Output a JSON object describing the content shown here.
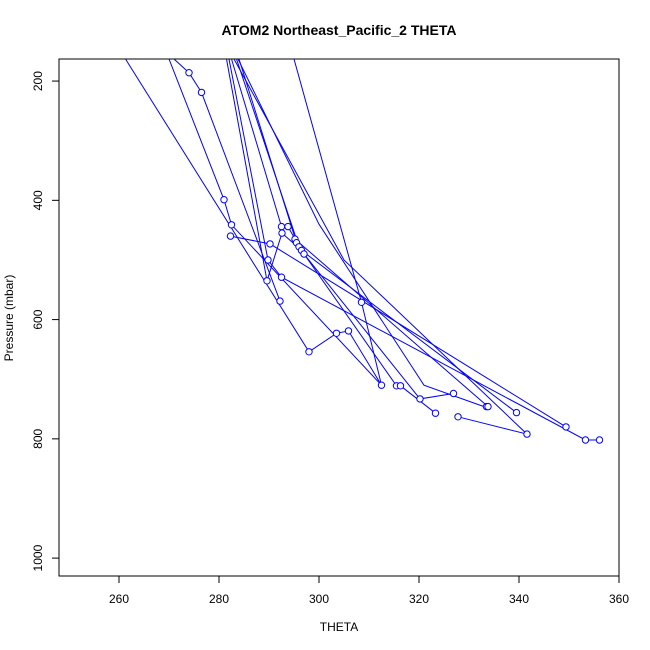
{
  "chart_data": {
    "type": "line",
    "title": "ATOM2 Northeast_Pacific_2 THETA",
    "xlabel": "THETA",
    "ylabel": "Pressure (mbar)",
    "xlim": [
      248,
      360
    ],
    "ylim_reversed": [
      1030,
      163
    ],
    "x_ticks": [
      "260",
      "280",
      "300",
      "320",
      "340",
      "360"
    ],
    "y_ticks": [
      "200",
      "400",
      "600",
      "800",
      "1000"
    ],
    "x_tick_values": [
      260,
      280,
      300,
      320,
      340,
      360
    ],
    "y_tick_values": [
      200,
      400,
      600,
      800,
      1000
    ],
    "grid": false,
    "series_color": "#0000ff",
    "marker": "open-circle",
    "points": [
      {
        "x": 274,
        "y": 186
      },
      {
        "x": 276.5,
        "y": 219
      },
      {
        "x": 281,
        "y": 399
      },
      {
        "x": 282.5,
        "y": 441
      },
      {
        "x": 282.3,
        "y": 460
      },
      {
        "x": 290.2,
        "y": 473
      },
      {
        "x": 289.8,
        "y": 500
      },
      {
        "x": 289.6,
        "y": 535
      },
      {
        "x": 292.5,
        "y": 529
      },
      {
        "x": 292.2,
        "y": 569
      },
      {
        "x": 292.5,
        "y": 444
      },
      {
        "x": 293.8,
        "y": 444
      },
      {
        "x": 292.6,
        "y": 455
      },
      {
        "x": 295.2,
        "y": 465
      },
      {
        "x": 295.5,
        "y": 471
      },
      {
        "x": 296.0,
        "y": 478
      },
      {
        "x": 296.5,
        "y": 484
      },
      {
        "x": 297.0,
        "y": 490
      },
      {
        "x": 308.5,
        "y": 571
      },
      {
        "x": 305.9,
        "y": 619
      },
      {
        "x": 303.5,
        "y": 623
      },
      {
        "x": 298.0,
        "y": 654
      },
      {
        "x": 312.5,
        "y": 710
      },
      {
        "x": 315.5,
        "y": 711
      },
      {
        "x": 316.3,
        "y": 711
      },
      {
        "x": 320.2,
        "y": 733
      },
      {
        "x": 326.9,
        "y": 724
      },
      {
        "x": 333.5,
        "y": 746
      },
      {
        "x": 333.8,
        "y": 746
      },
      {
        "x": 339.5,
        "y": 756
      },
      {
        "x": 323.3,
        "y": 757
      },
      {
        "x": 327.8,
        "y": 763
      },
      {
        "x": 349.4,
        "y": 780
      },
      {
        "x": 341.6,
        "y": 792
      },
      {
        "x": 353.3,
        "y": 802
      },
      {
        "x": 356.1,
        "y": 802
      }
    ],
    "lines": [
      [
        [
          261.3,
          163
        ],
        [
          298.0,
          654
        ],
        [
          303.5,
          623
        ],
        [
          305.9,
          619
        ],
        [
          312.5,
          710
        ],
        [
          308.5,
          571
        ],
        [
          295.0,
          163
        ]
      ],
      [
        [
          270.0,
          163
        ],
        [
          281,
          399
        ],
        [
          282.5,
          441
        ],
        [
          312.5,
          710
        ]
      ],
      [
        [
          271.0,
          163
        ],
        [
          274,
          186
        ],
        [
          276.5,
          219
        ],
        [
          292.2,
          569
        ]
      ],
      [
        [
          281.5,
          163
        ],
        [
          289.6,
          535
        ],
        [
          292.6,
          455
        ],
        [
          296.5,
          484
        ],
        [
          339.5,
          756
        ]
      ],
      [
        [
          282.3,
          460
        ],
        [
          290.2,
          473
        ],
        [
          349.4,
          780
        ]
      ],
      [
        [
          282.0,
          163
        ],
        [
          289.8,
          500
        ],
        [
          292.5,
          529
        ],
        [
          353.3,
          802
        ],
        [
          356.1,
          802
        ]
      ],
      [
        [
          282.5,
          163
        ],
        [
          292.5,
          444
        ],
        [
          293.8,
          444
        ],
        [
          295.2,
          465
        ],
        [
          333.8,
          746
        ],
        [
          333.5,
          746
        ]
      ],
      [
        [
          284.0,
          163
        ],
        [
          295.5,
          471
        ],
        [
          297.0,
          490
        ],
        [
          320.2,
          733
        ],
        [
          326.9,
          724
        ]
      ],
      [
        [
          283.5,
          163
        ],
        [
          296.0,
          478
        ],
        [
          315.5,
          711
        ],
        [
          316.3,
          711
        ],
        [
          323.3,
          757
        ]
      ],
      [
        [
          283.0,
          163
        ],
        [
          305.0,
          500
        ],
        [
          341.6,
          792
        ],
        [
          327.8,
          763
        ]
      ],
      [
        [
          283.8,
          163
        ],
        [
          300.0,
          440
        ],
        [
          321.0,
          710
        ],
        [
          333.0,
          746
        ]
      ]
    ]
  }
}
